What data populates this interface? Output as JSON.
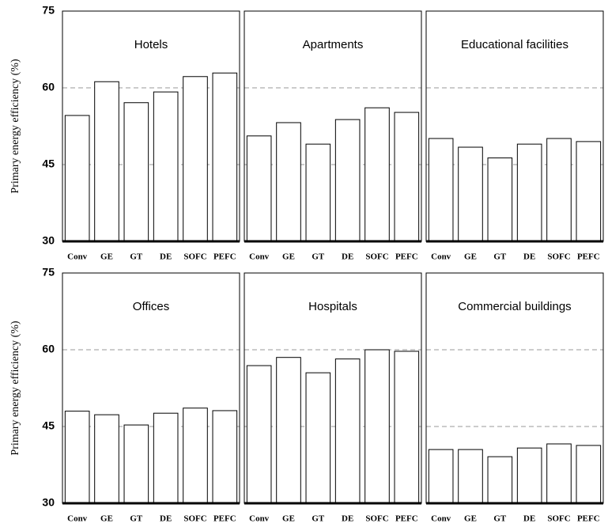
{
  "chart_data": [
    {
      "type": "bar",
      "title": "Hotels",
      "ylabel": "Primary energy efficiency (%)",
      "categories": [
        "Conv",
        "GE",
        "GT",
        "DE",
        "SOFC",
        "PEFC"
      ],
      "values": [
        54.6,
        61.2,
        57.1,
        59.2,
        62.2,
        62.9
      ],
      "color": "#ffffff",
      "ylim": [
        30,
        75
      ],
      "yticks": [
        30,
        45,
        60,
        75
      ],
      "grid": true
    },
    {
      "type": "bar",
      "title": "Apartments",
      "categories": [
        "Conv",
        "GE",
        "GT",
        "DE",
        "SOFC",
        "PEFC"
      ],
      "values": [
        50.6,
        53.2,
        49.0,
        53.8,
        56.1,
        55.2
      ],
      "color": "#ffffff",
      "ylim": [
        30,
        75
      ],
      "yticks": [
        30,
        45,
        60,
        75
      ],
      "grid": true
    },
    {
      "type": "bar",
      "title": "Educational facilities",
      "categories": [
        "Conv",
        "GE",
        "GT",
        "DE",
        "SOFC",
        "PEFC"
      ],
      "values": [
        50.1,
        48.4,
        46.3,
        49.0,
        50.1,
        49.5
      ],
      "color": "#ffffff",
      "ylim": [
        30,
        75
      ],
      "yticks": [
        30,
        45,
        60,
        75
      ],
      "grid": true
    },
    {
      "type": "bar",
      "title": "Offices",
      "ylabel": "Primary energy efficiency (%)",
      "categories": [
        "Conv",
        "GE",
        "GT",
        "DE",
        "SOFC",
        "PEFC"
      ],
      "values": [
        48.0,
        47.3,
        45.3,
        47.6,
        48.6,
        48.1
      ],
      "color": "#ffffff",
      "ylim": [
        30,
        75
      ],
      "yticks": [
        30,
        45,
        60,
        75
      ],
      "grid": true
    },
    {
      "type": "bar",
      "title": "Hospitals",
      "categories": [
        "Conv",
        "GE",
        "GT",
        "DE",
        "SOFC",
        "PEFC"
      ],
      "values": [
        56.9,
        58.5,
        55.5,
        58.2,
        60.0,
        59.7
      ],
      "color": "#ffffff",
      "ylim": [
        30,
        75
      ],
      "yticks": [
        30,
        45,
        60,
        75
      ],
      "grid": true
    },
    {
      "type": "bar",
      "title": "Commercial buildings",
      "categories": [
        "Conv",
        "GE",
        "GT",
        "DE",
        "SOFC",
        "PEFC"
      ],
      "values": [
        40.5,
        40.5,
        39.1,
        40.8,
        41.6,
        41.3
      ],
      "color": "#ffffff",
      "ylim": [
        30,
        75
      ],
      "yticks": [
        30,
        45,
        60,
        75
      ],
      "grid": true
    }
  ]
}
